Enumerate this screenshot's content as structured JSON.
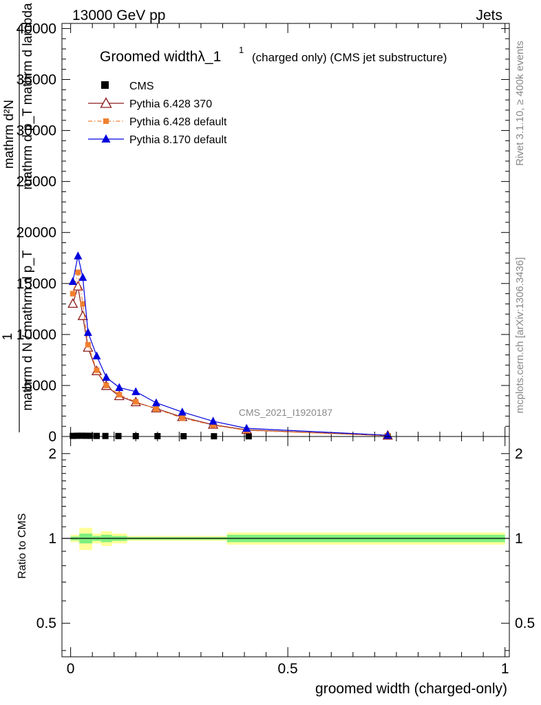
{
  "header": {
    "energy_label": "13000 GeV pp",
    "process_label": "Jets"
  },
  "side_labels": {
    "rivet": "Rivet 3.1.10, ≥ 400k events",
    "mcplots": "mcplots.cern.ch [arXiv:1306.3436]"
  },
  "watermark": "CMS_2021_I1920187",
  "colors": {
    "cms": "#000000",
    "py6_370": "#8b1a1a",
    "py6_default": "#f08030",
    "py8_default": "#0000dd",
    "band_inner": "#7ff07f",
    "band_outer": "#ffff99"
  },
  "chart_data": [
    {
      "type": "line",
      "title": "Groomed widthλ_1",
      "title_superscript": "1",
      "title_suffix": "(charged only) (CMS jet substructure)",
      "xlabel": "groomed width (charged-only)",
      "ylabel_numerator": "mathrm d²N",
      "ylabel_numerator_sub": "mathrm d p_T mathrm d lambda",
      "ylabel_prefix": "1",
      "ylabel_denominator": "mathrm d N / mathrm d p_T",
      "xlim": [
        -0.02,
        1.01
      ],
      "ylim": [
        0,
        40500
      ],
      "y_ticks": [
        0,
        5000,
        10000,
        15000,
        20000,
        25000,
        30000,
        35000,
        40000
      ],
      "y_tick_labels": [
        "0",
        "5000",
        "10000",
        "15000",
        "20000",
        "25000",
        "30000",
        "35000",
        "40000"
      ],
      "legend": [
        "CMS",
        "Pythia 6.428 370",
        "Pythia 6.428 default",
        "Pythia 8.170 default"
      ],
      "legend_position": "top-left",
      "series": [
        {
          "name": "CMS",
          "marker": "square",
          "x": [
            0.005,
            0.015,
            0.025,
            0.035,
            0.045,
            0.06,
            0.08,
            0.11,
            0.15,
            0.2,
            0.26,
            0.33,
            0.41,
            0.73
          ],
          "values": [
            60,
            70,
            75,
            70,
            65,
            55,
            50,
            45,
            40,
            35,
            30,
            25,
            20,
            5
          ]
        },
        {
          "name": "Pythia 6.428 370",
          "marker": "open-triangle",
          "x": [
            0.005,
            0.017,
            0.028,
            0.04,
            0.06,
            0.082,
            0.112,
            0.15,
            0.197,
            0.257,
            0.328,
            0.405,
            0.73
          ],
          "values": [
            13000,
            14700,
            11800,
            8700,
            6400,
            4950,
            3950,
            3350,
            2750,
            1900,
            1150,
            650,
            80
          ]
        },
        {
          "name": "Pythia 6.428 default",
          "marker": "filled-square",
          "x": [
            0.005,
            0.017,
            0.028,
            0.04,
            0.06,
            0.082,
            0.112,
            0.15,
            0.197,
            0.257,
            0.328,
            0.405,
            0.73
          ],
          "values": [
            14000,
            16100,
            13000,
            9000,
            6500,
            5000,
            4100,
            3400,
            2700,
            1800,
            1100,
            600,
            70
          ]
        },
        {
          "name": "Pythia 8.170 default",
          "marker": "filled-triangle",
          "x": [
            0.005,
            0.017,
            0.028,
            0.04,
            0.06,
            0.082,
            0.112,
            0.15,
            0.197,
            0.257,
            0.328,
            0.405,
            0.73
          ],
          "values": [
            15200,
            17700,
            15600,
            10200,
            7900,
            5800,
            4800,
            4400,
            3300,
            2400,
            1500,
            800,
            120
          ]
        }
      ]
    },
    {
      "type": "area",
      "title": "",
      "xlabel": "groomed width (charged-only)",
      "ylabel": "Ratio to CMS",
      "xlim": [
        -0.02,
        1.01
      ],
      "ylim": [
        0.38,
        2.3
      ],
      "y_ticks": [
        0.5,
        1,
        2
      ],
      "y_tick_labels": [
        "0.5",
        "1",
        "2"
      ],
      "x_ticks": [
        0,
        0.5,
        1
      ],
      "x_tick_labels": [
        "0",
        "0.5",
        "1"
      ],
      "reference_line": 1,
      "bins": [
        {
          "x0": 0.0,
          "x1": 0.02,
          "outer": [
            0.97,
            1.03
          ],
          "inner": [
            0.985,
            1.015
          ]
        },
        {
          "x0": 0.02,
          "x1": 0.05,
          "outer": [
            0.91,
            1.09
          ],
          "inner": [
            0.96,
            1.04
          ]
        },
        {
          "x0": 0.05,
          "x1": 0.07,
          "outer": [
            0.96,
            1.04
          ],
          "inner": [
            0.98,
            1.02
          ]
        },
        {
          "x0": 0.07,
          "x1": 0.095,
          "outer": [
            0.94,
            1.06
          ],
          "inner": [
            0.97,
            1.03
          ]
        },
        {
          "x0": 0.095,
          "x1": 0.13,
          "outer": [
            0.96,
            1.04
          ],
          "inner": [
            0.98,
            1.02
          ]
        },
        {
          "x0": 0.13,
          "x1": 0.36,
          "outer": [
            0.98,
            1.02
          ],
          "inner": [
            0.99,
            1.01
          ]
        },
        {
          "x0": 0.36,
          "x1": 1.0,
          "outer": [
            0.95,
            1.05
          ],
          "inner": [
            0.97,
            1.03
          ]
        }
      ]
    }
  ]
}
